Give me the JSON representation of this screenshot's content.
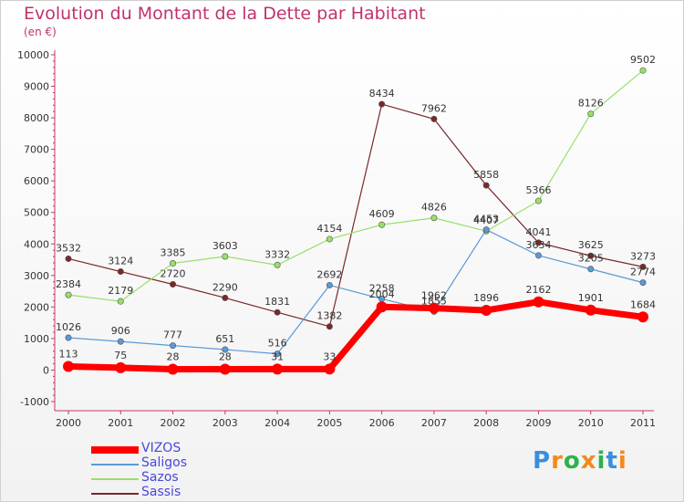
{
  "title": "Evolution du Montant de la Dette par Habitant",
  "subtitle": "(en €)",
  "logo": {
    "text": "Proxiti",
    "colors": [
      "#3a8fd9",
      "#f28a1b",
      "#2bb24c",
      "#f28a1b",
      "#2bb24c",
      "#3a8fd9",
      "#f28a1b"
    ]
  },
  "chart_data": {
    "type": "line",
    "x": [
      "2000",
      "2001",
      "2002",
      "2003",
      "2004",
      "2005",
      "2006",
      "2007",
      "2008",
      "2009",
      "2010",
      "2011"
    ],
    "ylim": [
      -1000,
      10000
    ],
    "yticks": [
      -1000,
      0,
      1000,
      2000,
      3000,
      4000,
      5000,
      6000,
      7000,
      8000,
      9000,
      10000
    ],
    "grid": false,
    "legend_position": "bottom-left",
    "series": [
      {
        "name": "VIZOS",
        "color": "#ff0000",
        "values": [
          113,
          75,
          28,
          28,
          31,
          33,
          2004,
          1962,
          1896,
          2162,
          1901,
          1684
        ]
      },
      {
        "name": "Saligos",
        "color": "#5a9ad6",
        "values": [
          1026,
          906,
          777,
          651,
          516,
          2692,
          2258,
          1855,
          4453,
          3634,
          3205,
          2774
        ]
      },
      {
        "name": "Sazos",
        "color": "#99e06a",
        "values": [
          2384,
          2179,
          3385,
          3603,
          3332,
          4154,
          4609,
          4826,
          4407,
          5366,
          8126,
          9502
        ]
      },
      {
        "name": "Sassis",
        "color": "#7a2828",
        "values": [
          3532,
          3124,
          2720,
          2290,
          1831,
          1382,
          8434,
          7962,
          5858,
          4041,
          3625,
          3273
        ]
      }
    ]
  }
}
